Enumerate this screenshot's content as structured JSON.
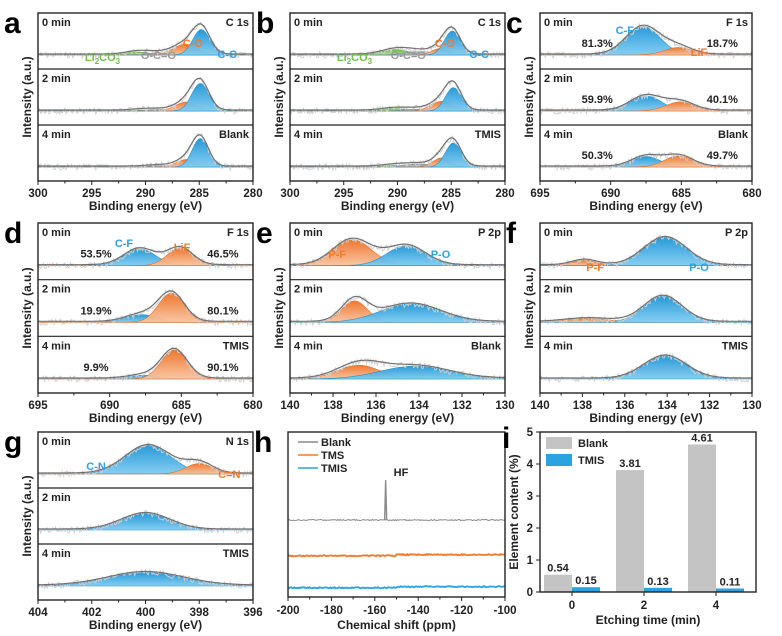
{
  "colors": {
    "blue": "#2aa3e0",
    "orange": "#f07a2c",
    "green": "#6cc04a",
    "gray_fill": "#9a9a9a",
    "bar_gray": "#c4c4c4",
    "bar_blue": "#2aa3e0",
    "envelope": "#777777",
    "raw": "#cfcfcf"
  },
  "chart_data": [
    {
      "id": "a",
      "type": "area",
      "panel_label": "a",
      "title": "C 1s",
      "sample": "Blank",
      "xlabel": "Binding energy (eV)",
      "ylabel": "Intensity (a.u.)",
      "xlim": [
        300,
        280
      ],
      "xticks": [
        300,
        295,
        290,
        285,
        280
      ],
      "rows": [
        {
          "label": "0 min",
          "peaks": [
            {
              "name": "Li2CO3",
              "center": 290.8,
              "height": 0.1,
              "width": 1.1,
              "color": "green"
            },
            {
              "name": "O-C=O",
              "center": 288.8,
              "height": 0.07,
              "width": 1.2,
              "color": "gray"
            },
            {
              "name": "C-O",
              "center": 286.3,
              "height": 0.36,
              "width": 1.1,
              "color": "orange"
            },
            {
              "name": "C-C",
              "center": 284.8,
              "height": 0.85,
              "width": 0.8,
              "color": "blue"
            }
          ]
        },
        {
          "label": "2 min",
          "peaks": [
            {
              "name": "Li2CO3",
              "center": 290.5,
              "height": 0.03,
              "width": 1.0,
              "color": "green"
            },
            {
              "name": "O-C=O",
              "center": 288.8,
              "height": 0.05,
              "width": 1.2,
              "color": "gray"
            },
            {
              "name": "C-O",
              "center": 286.2,
              "height": 0.3,
              "width": 1.0,
              "color": "orange"
            },
            {
              "name": "C-C",
              "center": 284.9,
              "height": 0.92,
              "width": 0.8,
              "color": "blue"
            }
          ]
        },
        {
          "label": "4 min",
          "peaks": [
            {
              "name": "O-C=O",
              "center": 288.6,
              "height": 0.05,
              "width": 1.2,
              "color": "gray"
            },
            {
              "name": "C-O",
              "center": 286.2,
              "height": 0.25,
              "width": 0.9,
              "color": "orange"
            },
            {
              "name": "C-C",
              "center": 284.9,
              "height": 0.95,
              "width": 0.75,
              "color": "blue"
            }
          ]
        }
      ],
      "annotations": [
        {
          "text": "Li2CO3",
          "color": "green"
        },
        {
          "text": "O-C=O",
          "color": "gray"
        },
        {
          "text": "C-O",
          "color": "orange"
        },
        {
          "text": "C-C",
          "color": "blue"
        }
      ]
    },
    {
      "id": "b",
      "type": "area",
      "panel_label": "b",
      "title": "C 1s",
      "sample": "TMIS",
      "xlabel": "Binding energy (eV)",
      "ylabel": "Intensity (a.u.)",
      "xlim": [
        300,
        280
      ],
      "xticks": [
        300,
        295,
        290,
        285,
        280
      ],
      "rows": [
        {
          "label": "0 min",
          "peaks": [
            {
              "name": "Li2CO3",
              "center": 290.2,
              "height": 0.18,
              "width": 1.3,
              "color": "green"
            },
            {
              "name": "O-C=O",
              "center": 288.0,
              "height": 0.12,
              "width": 1.3,
              "color": "gray"
            },
            {
              "name": "C-O",
              "center": 286.0,
              "height": 0.22,
              "width": 0.8,
              "color": "orange"
            },
            {
              "name": "C-C",
              "center": 284.9,
              "height": 0.8,
              "width": 0.75,
              "color": "blue"
            }
          ]
        },
        {
          "label": "2 min",
          "peaks": [
            {
              "name": "Li2CO3",
              "center": 290.3,
              "height": 0.08,
              "width": 1.2,
              "color": "green"
            },
            {
              "name": "O-C=O",
              "center": 288.2,
              "height": 0.06,
              "width": 1.2,
              "color": "gray"
            },
            {
              "name": "C-O",
              "center": 285.9,
              "height": 0.32,
              "width": 1.0,
              "color": "orange"
            },
            {
              "name": "C-C",
              "center": 284.8,
              "height": 0.78,
              "width": 0.75,
              "color": "blue"
            }
          ]
        },
        {
          "label": "4 min",
          "peaks": [
            {
              "name": "Li2CO3",
              "center": 290.3,
              "height": 0.06,
              "width": 1.2,
              "color": "green"
            },
            {
              "name": "O-C=O",
              "center": 288.0,
              "height": 0.1,
              "width": 1.3,
              "color": "gray"
            },
            {
              "name": "C-O",
              "center": 285.9,
              "height": 0.3,
              "width": 0.8,
              "color": "orange"
            },
            {
              "name": "C-C",
              "center": 284.8,
              "height": 0.8,
              "width": 0.75,
              "color": "blue"
            }
          ]
        }
      ],
      "annotations": [
        {
          "text": "Li2CO3",
          "color": "green"
        },
        {
          "text": "O-C=O",
          "color": "gray"
        },
        {
          "text": "C-O",
          "color": "orange"
        },
        {
          "text": "C-C",
          "color": "blue"
        }
      ]
    },
    {
      "id": "c",
      "type": "area",
      "panel_label": "c",
      "title": "F 1s",
      "sample": "Blank",
      "xlabel": "Binding energy (eV)",
      "ylabel": "Intensity (a.u.)",
      "xlim": [
        695,
        680
      ],
      "xticks": [
        695,
        690,
        685,
        680
      ],
      "rows": [
        {
          "label": "0 min",
          "left_pct": "81.3%",
          "right_pct": "18.7%",
          "peaks": [
            {
              "name": "C-F",
              "center": 687.7,
              "height": 0.95,
              "width": 1.2,
              "color": "blue"
            },
            {
              "name": "LiF",
              "center": 685.2,
              "height": 0.25,
              "width": 1.0,
              "color": "orange"
            }
          ]
        },
        {
          "label": "2 min",
          "left_pct": "59.9%",
          "right_pct": "40.1%",
          "peaks": [
            {
              "name": "C-F",
              "center": 687.5,
              "height": 0.5,
              "width": 1.1,
              "color": "blue"
            },
            {
              "name": "LiF",
              "center": 685.1,
              "height": 0.3,
              "width": 1.0,
              "color": "orange"
            }
          ]
        },
        {
          "label": "4 min",
          "left_pct": "50.3%",
          "right_pct": "49.7%",
          "peaks": [
            {
              "name": "C-F",
              "center": 687.5,
              "height": 0.35,
              "width": 1.0,
              "color": "blue"
            },
            {
              "name": "LiF",
              "center": 685.2,
              "height": 0.37,
              "width": 1.0,
              "color": "orange"
            }
          ]
        }
      ],
      "annotations": [
        {
          "text": "C-F",
          "color": "blue"
        },
        {
          "text": "LiF",
          "color": "orange"
        }
      ]
    },
    {
      "id": "d",
      "type": "area",
      "panel_label": "d",
      "title": "F 1s",
      "sample": "TMIS",
      "xlabel": "Binding energy (eV)",
      "ylabel": "Intensity (a.u.)",
      "xlim": [
        695,
        680
      ],
      "xticks": [
        695,
        690,
        685,
        680
      ],
      "rows": [
        {
          "label": "0 min",
          "left_pct": "53.5%",
          "right_pct": "46.5%",
          "peaks": [
            {
              "name": "C-F",
              "center": 687.9,
              "height": 0.55,
              "width": 1.1,
              "color": "blue"
            },
            {
              "name": "LiF",
              "center": 685.1,
              "height": 0.57,
              "width": 0.9,
              "color": "orange"
            }
          ]
        },
        {
          "label": "2 min",
          "left_pct": "19.9%",
          "right_pct": "80.1%",
          "peaks": [
            {
              "name": "C-F",
              "center": 687.8,
              "height": 0.25,
              "width": 1.1,
              "color": "blue"
            },
            {
              "name": "LiF",
              "center": 685.7,
              "height": 0.95,
              "width": 0.9,
              "color": "orange"
            }
          ]
        },
        {
          "label": "4 min",
          "left_pct": "9.9%",
          "right_pct": "90.1%",
          "peaks": [
            {
              "name": "C-F",
              "center": 687.6,
              "height": 0.12,
              "width": 1.1,
              "color": "blue"
            },
            {
              "name": "LiF",
              "center": 685.5,
              "height": 0.95,
              "width": 0.9,
              "color": "orange"
            }
          ]
        }
      ],
      "annotations": [
        {
          "text": "C-F",
          "color": "blue"
        },
        {
          "text": "LiF",
          "color": "orange"
        }
      ]
    },
    {
      "id": "e",
      "type": "area",
      "panel_label": "e",
      "title": "P 2p",
      "sample": "Blank",
      "xlabel": "Binding energy (eV)",
      "ylabel": "Intensity (a.u.)",
      "xlim": [
        140,
        130
      ],
      "xticks": [
        140,
        138,
        136,
        134,
        132,
        130
      ],
      "rows": [
        {
          "label": "0 min",
          "peaks": [
            {
              "name": "P-F",
              "center": 137.1,
              "height": 0.85,
              "width": 0.9,
              "color": "orange"
            },
            {
              "name": "P-O",
              "center": 134.6,
              "height": 0.65,
              "width": 0.9,
              "color": "blue"
            }
          ]
        },
        {
          "label": "2 min",
          "peaks": [
            {
              "name": "P-F",
              "center": 137.0,
              "height": 0.7,
              "width": 0.6,
              "color": "orange"
            },
            {
              "name": "P-O",
              "center": 134.4,
              "height": 0.6,
              "width": 1.4,
              "color": "blue"
            }
          ]
        },
        {
          "label": "4 min",
          "peaks": [
            {
              "name": "P-F",
              "center": 136.8,
              "height": 0.45,
              "width": 1.0,
              "color": "orange"
            },
            {
              "name": "P-O",
              "center": 134.2,
              "height": 0.42,
              "width": 1.6,
              "color": "blue"
            }
          ]
        }
      ],
      "annotations": [
        {
          "text": "P-F",
          "color": "orange"
        },
        {
          "text": "P-O",
          "color": "blue"
        }
      ]
    },
    {
      "id": "f",
      "type": "area",
      "panel_label": "f",
      "title": "P 2p",
      "sample": "TMIS",
      "xlabel": "Binding energy (eV)",
      "ylabel": "Intensity (a.u.)",
      "xlim": [
        140,
        130
      ],
      "xticks": [
        140,
        138,
        136,
        134,
        132,
        130
      ],
      "rows": [
        {
          "label": "0 min",
          "peaks": [
            {
              "name": "P-F",
              "center": 137.9,
              "height": 0.18,
              "width": 0.6,
              "color": "orange"
            },
            {
              "name": "P-O",
              "center": 134.1,
              "height": 0.92,
              "width": 1.0,
              "color": "blue"
            }
          ]
        },
        {
          "label": "2 min",
          "peaks": [
            {
              "name": "P-F",
              "center": 137.7,
              "height": 0.12,
              "width": 1.1,
              "color": "orange"
            },
            {
              "name": "P-O",
              "center": 134.2,
              "height": 0.85,
              "width": 0.9,
              "color": "blue"
            }
          ]
        },
        {
          "label": "4 min",
          "peaks": [
            {
              "name": "P-O",
              "center": 134.1,
              "height": 0.75,
              "width": 1.0,
              "color": "blue"
            }
          ]
        }
      ],
      "annotations": [
        {
          "text": "P-F",
          "color": "orange"
        },
        {
          "text": "P-O",
          "color": "blue"
        }
      ]
    },
    {
      "id": "g",
      "type": "area",
      "panel_label": "g",
      "title": "N 1s",
      "sample": "TMIS",
      "xlabel": "Binding energy (eV)",
      "ylabel": "Intensity (a.u.)",
      "xlim": [
        404,
        396
      ],
      "xticks": [
        404,
        402,
        400,
        398,
        396
      ],
      "rows": [
        {
          "label": "0 min",
          "peaks": [
            {
              "name": "C-N",
              "center": 399.9,
              "height": 0.95,
              "width": 0.85,
              "color": "blue"
            },
            {
              "name": "C=N",
              "center": 398.0,
              "height": 0.35,
              "width": 0.5,
              "color": "orange"
            }
          ]
        },
        {
          "label": "2 min",
          "peaks": [
            {
              "name": "C-N",
              "center": 400.0,
              "height": 0.55,
              "width": 0.9,
              "color": "blue"
            }
          ]
        },
        {
          "label": "4 min",
          "peaks": [
            {
              "name": "C-N",
              "center": 400.0,
              "height": 0.45,
              "width": 1.4,
              "color": "blue"
            }
          ]
        }
      ],
      "annotations": [
        {
          "text": "C-N",
          "color": "blue"
        },
        {
          "text": "C=N",
          "color": "orange"
        }
      ]
    },
    {
      "id": "h",
      "type": "line",
      "panel_label": "h",
      "xlabel": "Chemical shift (ppm)",
      "ylabel": "",
      "xlim": [
        -200,
        -100
      ],
      "xticks": [
        -200,
        -180,
        -160,
        -140,
        -120,
        -100
      ],
      "legend": "top-left",
      "series": [
        {
          "name": "Blank",
          "color": "#8a8a8a",
          "offset": 2,
          "spike_at": -155,
          "spike_height": 1.0
        },
        {
          "name": "TMS",
          "color": "#f07a2c",
          "offset": 1
        },
        {
          "name": "TMIS",
          "color": "#2aa3e0",
          "offset": 0
        }
      ],
      "annotations": [
        {
          "text": "HF",
          "x": -155
        }
      ]
    },
    {
      "id": "i",
      "type": "bar",
      "panel_label": "i",
      "xlabel": "Etching time (min)",
      "ylabel": "Element content (%)",
      "ylim": [
        0,
        5
      ],
      "yticks": [
        0,
        1,
        2,
        3,
        4,
        5
      ],
      "categories": [
        "0",
        "2",
        "4"
      ],
      "legend": "top-left",
      "series": [
        {
          "name": "Blank",
          "color": "#c4c4c4",
          "values": [
            0.54,
            3.81,
            4.61
          ],
          "labels": [
            "0.54",
            "3.81",
            "4.61"
          ]
        },
        {
          "name": "TMIS",
          "color": "#2aa3e0",
          "values": [
            0.15,
            0.13,
            0.11
          ],
          "labels": [
            "0.15",
            "0.13",
            "0.11"
          ]
        }
      ]
    }
  ]
}
